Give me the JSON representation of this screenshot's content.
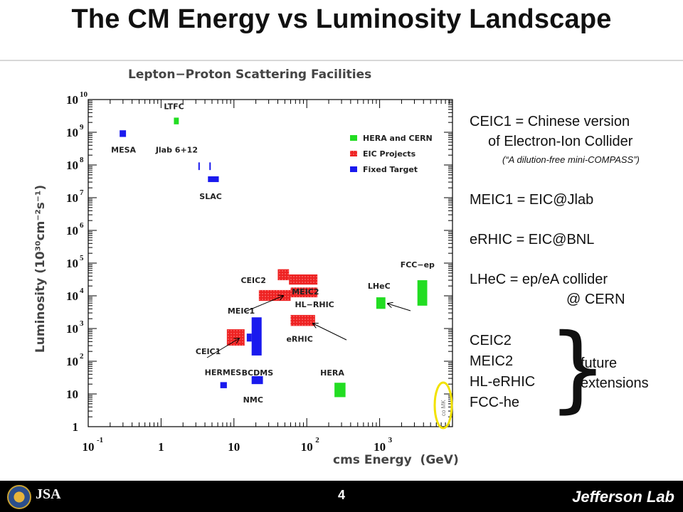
{
  "slide": {
    "title": "The CM Energy vs Luminosity Landscape",
    "page_number": "4",
    "footer_logo_text": "Jefferson Lab",
    "footer_left_logo_text": "JSA"
  },
  "notes": {
    "line1": "CEIC1 = Chinese version",
    "line2": "of Electron-Ion Collider",
    "line3": "(“A dilution-free mini-COMPASS”)",
    "line4": "MEIC1 = EIC@Jlab",
    "line5": "eRHIC = EIC@BNL",
    "line6": "LHeC = ep/eA collider",
    "line7": "@ CERN",
    "future_list": [
      "CEIC2",
      "MEIC2",
      "HL-eRHIC",
      "FCC-he"
    ],
    "future_label_1": "future",
    "future_label_2": "extensions",
    "brace": "}"
  },
  "chart_data": {
    "type": "scatter",
    "title": "Lepton−Proton Scattering Facilities",
    "xlabel": "cms Energy  (GeV)",
    "ylabel": "Luminosity (10³⁰cm⁻²s⁻¹)",
    "x_scale": "log",
    "y_scale": "log",
    "xlim": [
      0.1,
      10000
    ],
    "ylim": [
      1,
      10000000000
    ],
    "x_ticks": [
      {
        "value": 0.1,
        "base": "10",
        "exp": "-1"
      },
      {
        "value": 1,
        "base": "1",
        "exp": ""
      },
      {
        "value": 10,
        "base": "10",
        "exp": ""
      },
      {
        "value": 100,
        "base": "10",
        "exp": "2"
      },
      {
        "value": 1000,
        "base": "10",
        "exp": "3"
      }
    ],
    "y_ticks": [
      {
        "value": 1,
        "base": "1",
        "exp": ""
      },
      {
        "value": 10,
        "base": "10",
        "exp": ""
      },
      {
        "value": 100,
        "base": "10",
        "exp": "2"
      },
      {
        "value": 1000,
        "base": "10",
        "exp": "3"
      },
      {
        "value": 10000,
        "base": "10",
        "exp": "4"
      },
      {
        "value": 100000,
        "base": "10",
        "exp": "5"
      },
      {
        "value": 1000000,
        "base": "10",
        "exp": "6"
      },
      {
        "value": 10000000,
        "base": "10",
        "exp": "7"
      },
      {
        "value": 100000000,
        "base": "10",
        "exp": "8"
      },
      {
        "value": 1000000000,
        "base": "10",
        "exp": "9"
      },
      {
        "value": 10000000000,
        "base": "10",
        "exp": "10"
      }
    ],
    "legend_position": "top-right",
    "series": [
      {
        "name": "HERA and CERN",
        "color": "#22dd22"
      },
      {
        "name": "EIC Projects",
        "color": "#ee2222"
      },
      {
        "name": "Fixed Target",
        "color": "#1a1aee"
      }
    ],
    "facilities": [
      {
        "label": "MESA",
        "group": "Fixed Target",
        "x": [
          0.27,
          0.33
        ],
        "y": [
          720000000,
          1150000000
        ]
      },
      {
        "label": "LTFC",
        "group": "HERA and CERN",
        "x": [
          1.5,
          1.75
        ],
        "y": [
          1750000000,
          2800000000
        ]
      },
      {
        "label": "Jlab 6+12",
        "group": "Fixed Target",
        "x": [
          3.25,
          3.35
        ],
        "y": [
          70000000,
          120000000
        ]
      },
      {
        "label": "",
        "group": "Fixed Target",
        "x": [
          4.6,
          4.8
        ],
        "y": [
          70000000,
          120000000
        ]
      },
      {
        "label": "SLAC",
        "group": "Fixed Target",
        "x": [
          4.4,
          6.2
        ],
        "y": [
          30000000,
          45000000
        ]
      },
      {
        "label": "CEIC2",
        "group": "EIC Projects",
        "x": [
          40,
          57
        ],
        "y": [
          30000,
          65000
        ]
      },
      {
        "label": "MEIC2",
        "group": "EIC Projects",
        "x": [
          57,
          140
        ],
        "y": [
          22000,
          45000
        ]
      },
      {
        "label": "MEIC1",
        "group": "EIC Projects",
        "x": [
          22,
          60
        ],
        "y": [
          7000,
          15000
        ]
      },
      {
        "label": "HL−RHIC",
        "group": "EIC Projects",
        "x": [
          60,
          140
        ],
        "y": [
          9000,
          18000
        ]
      },
      {
        "label": "eRHIC",
        "group": "EIC Projects",
        "x": [
          60,
          130
        ],
        "y": [
          1200,
          2600
        ]
      },
      {
        "label": "CEIC1",
        "group": "EIC Projects",
        "x": [
          8,
          14
        ],
        "y": [
          300,
          950
        ]
      },
      {
        "label": "BCDMS",
        "group": "Fixed Target",
        "x": [
          17.5,
          24
        ],
        "y": [
          150,
          2200
        ]
      },
      {
        "label": "",
        "group": "Fixed Target",
        "x": [
          15,
          17.5
        ],
        "y": [
          400,
          700
        ]
      },
      {
        "label": "NMC",
        "group": "Fixed Target",
        "x": [
          17.5,
          25
        ],
        "y": [
          20,
          35
        ]
      },
      {
        "label": "HERMES",
        "group": "Fixed Target",
        "x": [
          6.5,
          8
        ],
        "y": [
          15,
          23
        ]
      },
      {
        "label": "HERA",
        "group": "HERA and CERN",
        "x": [
          240,
          340
        ],
        "y": [
          8,
          22
        ]
      },
      {
        "label": "LHeC",
        "group": "HERA and CERN",
        "x": [
          900,
          1200
        ],
        "y": [
          4000,
          9000
        ]
      },
      {
        "label": "FCC−ep",
        "group": "HERA and CERN",
        "x": [
          3300,
          4500
        ],
        "y": [
          5000,
          30000
        ]
      }
    ],
    "watermark": "co MK"
  }
}
